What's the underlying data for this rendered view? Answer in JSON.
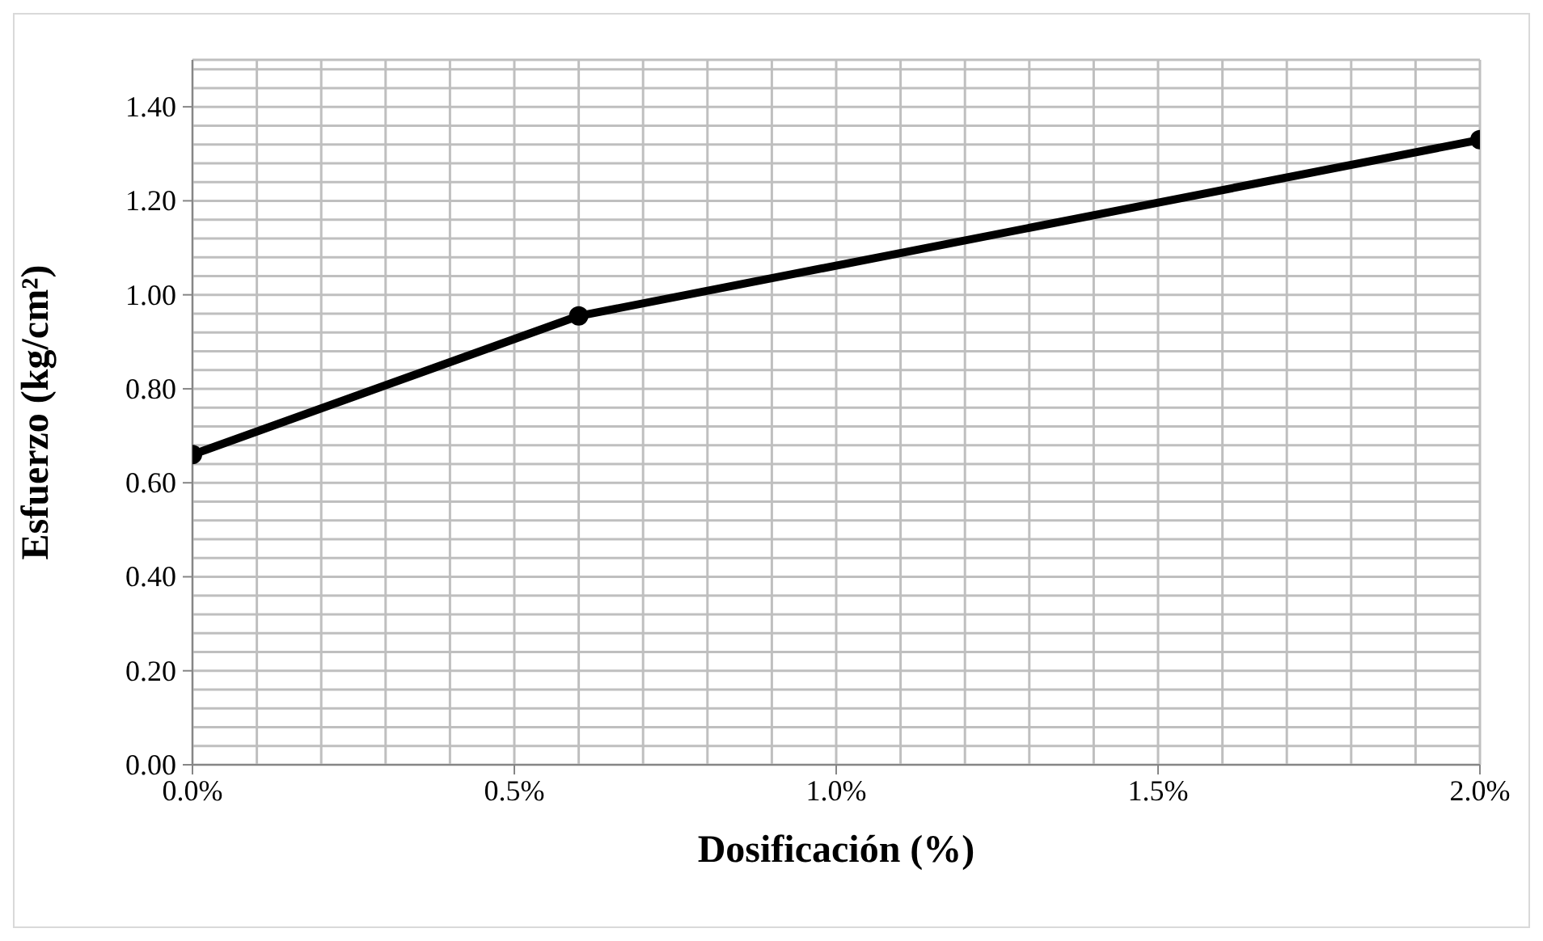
{
  "chart_data": {
    "type": "line",
    "xlabel": "Dosificación (%)",
    "ylabel": "Esfuerzo (kg/cm²)",
    "x": [
      0,
      0.6,
      2.0
    ],
    "series": [
      {
        "color": "#000000",
        "values": [
          0.66,
          0.955,
          1.33
        ]
      }
    ],
    "marker": "circle",
    "grid": true,
    "legend": false,
    "xlim": [
      0,
      2.0
    ],
    "xticks": [
      {
        "value": 0,
        "label": "0.0%"
      },
      {
        "value": 0.1,
        "label": null
      },
      {
        "value": 0.2,
        "label": null
      },
      {
        "value": 0.3,
        "label": null
      },
      {
        "value": 0.4,
        "label": null
      },
      {
        "value": 0.5,
        "label": "0.5%"
      },
      {
        "value": 0.6,
        "label": null
      },
      {
        "value": 0.7,
        "label": null
      },
      {
        "value": 0.8,
        "label": null
      },
      {
        "value": 0.9,
        "label": null
      },
      {
        "value": 1.0,
        "label": "1.0%"
      },
      {
        "value": 1.1,
        "label": null
      },
      {
        "value": 1.2,
        "label": null
      },
      {
        "value": 1.3,
        "label": null
      },
      {
        "value": 1.4,
        "label": null
      },
      {
        "value": 1.5,
        "label": "1.5%"
      },
      {
        "value": 1.6,
        "label": null
      },
      {
        "value": 1.7,
        "label": null
      },
      {
        "value": 1.8,
        "label": null
      },
      {
        "value": 1.9,
        "label": null
      },
      {
        "value": 2.0,
        "label": "2.0%"
      }
    ],
    "ylim": [
      0,
      1.5
    ],
    "yticks": [
      {
        "value": 0,
        "label": "0.00"
      },
      {
        "value": 0.04,
        "label": null
      },
      {
        "value": 0.08,
        "label": null
      },
      {
        "value": 0.12,
        "label": null
      },
      {
        "value": 0.16,
        "label": null
      },
      {
        "value": 0.2,
        "label": "0.20"
      },
      {
        "value": 0.24,
        "label": null
      },
      {
        "value": 0.28,
        "label": null
      },
      {
        "value": 0.32,
        "label": null
      },
      {
        "value": 0.36,
        "label": null
      },
      {
        "value": 0.4,
        "label": "0.40"
      },
      {
        "value": 0.44,
        "label": null
      },
      {
        "value": 0.48,
        "label": null
      },
      {
        "value": 0.52,
        "label": null
      },
      {
        "value": 0.56,
        "label": null
      },
      {
        "value": 0.6,
        "label": "0.60"
      },
      {
        "value": 0.64,
        "label": null
      },
      {
        "value": 0.68,
        "label": null
      },
      {
        "value": 0.72,
        "label": null
      },
      {
        "value": 0.76,
        "label": null
      },
      {
        "value": 0.8,
        "label": "0.80"
      },
      {
        "value": 0.84,
        "label": null
      },
      {
        "value": 0.88,
        "label": null
      },
      {
        "value": 0.92,
        "label": null
      },
      {
        "value": 0.96,
        "label": null
      },
      {
        "value": 1.0,
        "label": "1.00"
      },
      {
        "value": 1.04,
        "label": null
      },
      {
        "value": 1.08,
        "label": null
      },
      {
        "value": 1.12,
        "label": null
      },
      {
        "value": 1.16,
        "label": null
      },
      {
        "value": 1.2,
        "label": "1.20"
      },
      {
        "value": 1.24,
        "label": null
      },
      {
        "value": 1.28,
        "label": null
      },
      {
        "value": 1.32,
        "label": null
      },
      {
        "value": 1.36,
        "label": null
      },
      {
        "value": 1.4,
        "label": "1.40"
      },
      {
        "value": 1.44,
        "label": null
      },
      {
        "value": 1.48,
        "label": null
      }
    ]
  }
}
